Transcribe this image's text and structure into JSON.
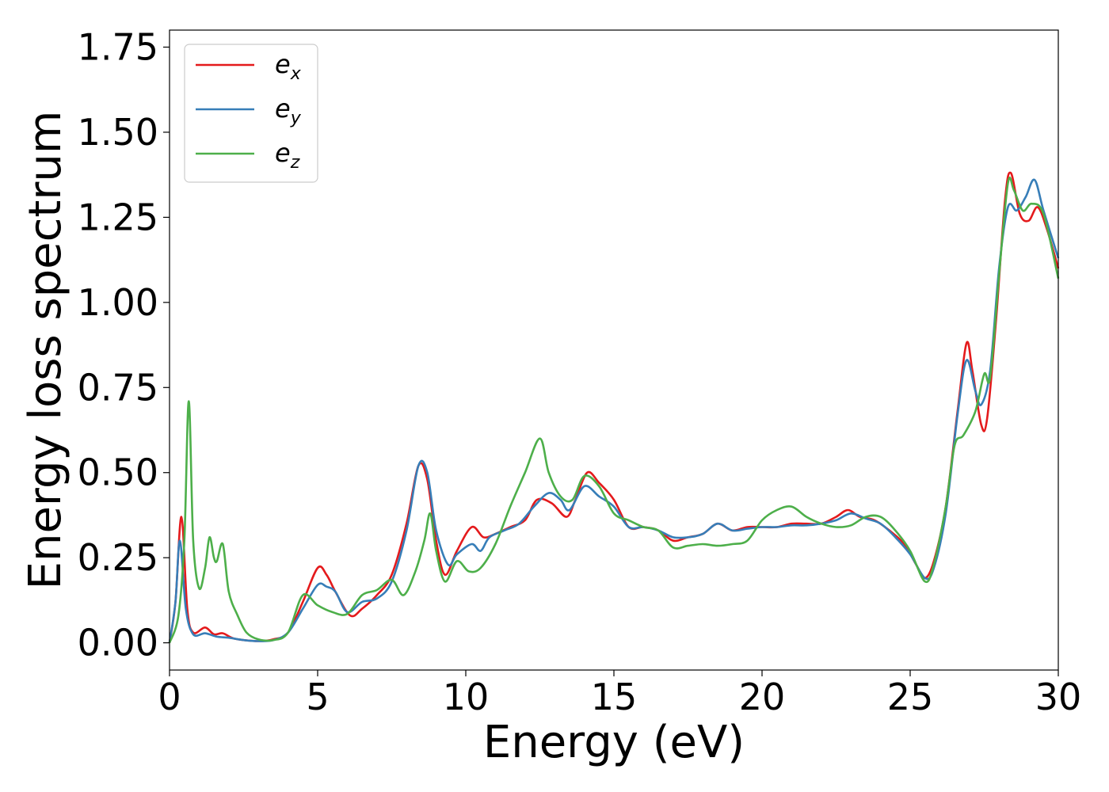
{
  "chart_data": {
    "type": "line",
    "xlabel": "Energy (eV)",
    "ylabel": "Energy loss spectrum",
    "xlim": [
      0,
      30
    ],
    "ylim": [
      -0.08,
      1.8
    ],
    "x_ticks": [
      0,
      5,
      10,
      15,
      20,
      25,
      30
    ],
    "x_tick_labels": [
      "0",
      "5",
      "10",
      "15",
      "20",
      "25",
      "30"
    ],
    "y_ticks": [
      0.0,
      0.25,
      0.5,
      0.75,
      1.0,
      1.25,
      1.5,
      1.75
    ],
    "y_tick_labels": [
      "0.00",
      "0.25",
      "0.50",
      "0.75",
      "1.00",
      "1.25",
      "1.50",
      "1.75"
    ],
    "grid": false,
    "legend_position": "top-left",
    "series": [
      {
        "name": "e_x",
        "label_base": "e",
        "label_sub": "x",
        "color": "#e41a1c",
        "points": [
          [
            0,
            0.0
          ],
          [
            0.2,
            0.12
          ],
          [
            0.4,
            0.37
          ],
          [
            0.6,
            0.1
          ],
          [
            0.8,
            0.03
          ],
          [
            1.2,
            0.045
          ],
          [
            1.5,
            0.025
          ],
          [
            1.8,
            0.028
          ],
          [
            2.2,
            0.012
          ],
          [
            3,
            0.005
          ],
          [
            3.5,
            0.01
          ],
          [
            4,
            0.03
          ],
          [
            4.5,
            0.12
          ],
          [
            5,
            0.22
          ],
          [
            5.3,
            0.2
          ],
          [
            5.6,
            0.15
          ],
          [
            6.1,
            0.08
          ],
          [
            6.5,
            0.1
          ],
          [
            7,
            0.14
          ],
          [
            7.5,
            0.2
          ],
          [
            8,
            0.35
          ],
          [
            8.4,
            0.52
          ],
          [
            8.7,
            0.48
          ],
          [
            9,
            0.3
          ],
          [
            9.3,
            0.2
          ],
          [
            9.7,
            0.27
          ],
          [
            10.2,
            0.34
          ],
          [
            10.6,
            0.31
          ],
          [
            11,
            0.32
          ],
          [
            11.5,
            0.34
          ],
          [
            12,
            0.36
          ],
          [
            12.4,
            0.42
          ],
          [
            12.9,
            0.41
          ],
          [
            13.4,
            0.37
          ],
          [
            13.7,
            0.42
          ],
          [
            14.1,
            0.5
          ],
          [
            14.5,
            0.47
          ],
          [
            15,
            0.42
          ],
          [
            15.5,
            0.34
          ],
          [
            16,
            0.34
          ],
          [
            16.5,
            0.33
          ],
          [
            17,
            0.3
          ],
          [
            17.5,
            0.31
          ],
          [
            18,
            0.32
          ],
          [
            18.5,
            0.35
          ],
          [
            19,
            0.33
          ],
          [
            19.5,
            0.34
          ],
          [
            20,
            0.34
          ],
          [
            20.5,
            0.34
          ],
          [
            21,
            0.35
          ],
          [
            21.5,
            0.35
          ],
          [
            22,
            0.35
          ],
          [
            22.5,
            0.37
          ],
          [
            22.9,
            0.39
          ],
          [
            23.3,
            0.37
          ],
          [
            23.8,
            0.36
          ],
          [
            24.3,
            0.33
          ],
          [
            24.8,
            0.29
          ],
          [
            25.2,
            0.23
          ],
          [
            25.5,
            0.19
          ],
          [
            25.8,
            0.24
          ],
          [
            26.2,
            0.4
          ],
          [
            26.6,
            0.68
          ],
          [
            26.9,
            0.88
          ],
          [
            27.1,
            0.8
          ],
          [
            27.4,
            0.64
          ],
          [
            27.6,
            0.66
          ],
          [
            27.9,
            0.95
          ],
          [
            28.2,
            1.3
          ],
          [
            28.4,
            1.38
          ],
          [
            28.7,
            1.26
          ],
          [
            29,
            1.24
          ],
          [
            29.3,
            1.28
          ],
          [
            29.6,
            1.22
          ],
          [
            30,
            1.1
          ]
        ]
      },
      {
        "name": "e_y",
        "label_base": "e",
        "label_sub": "y",
        "color": "#377eb8",
        "points": [
          [
            0,
            0.0
          ],
          [
            0.2,
            0.12
          ],
          [
            0.35,
            0.3
          ],
          [
            0.55,
            0.1
          ],
          [
            0.8,
            0.025
          ],
          [
            1.2,
            0.028
          ],
          [
            1.6,
            0.018
          ],
          [
            2,
            0.015
          ],
          [
            2.5,
            0.008
          ],
          [
            3,
            0.005
          ],
          [
            3.5,
            0.008
          ],
          [
            4,
            0.03
          ],
          [
            4.5,
            0.1
          ],
          [
            5,
            0.17
          ],
          [
            5.3,
            0.165
          ],
          [
            5.6,
            0.15
          ],
          [
            6,
            0.09
          ],
          [
            6.5,
            0.12
          ],
          [
            7,
            0.13
          ],
          [
            7.5,
            0.18
          ],
          [
            8,
            0.33
          ],
          [
            8.4,
            0.52
          ],
          [
            8.7,
            0.5
          ],
          [
            9,
            0.33
          ],
          [
            9.4,
            0.23
          ],
          [
            9.7,
            0.26
          ],
          [
            10.2,
            0.29
          ],
          [
            10.5,
            0.27
          ],
          [
            10.8,
            0.31
          ],
          [
            11.3,
            0.33
          ],
          [
            11.8,
            0.35
          ],
          [
            12.3,
            0.4
          ],
          [
            12.8,
            0.44
          ],
          [
            13.2,
            0.42
          ],
          [
            13.5,
            0.39
          ],
          [
            14,
            0.46
          ],
          [
            14.5,
            0.43
          ],
          [
            15,
            0.4
          ],
          [
            15.5,
            0.34
          ],
          [
            16,
            0.34
          ],
          [
            16.5,
            0.33
          ],
          [
            17,
            0.31
          ],
          [
            17.5,
            0.31
          ],
          [
            18,
            0.32
          ],
          [
            18.5,
            0.35
          ],
          [
            19,
            0.33
          ],
          [
            19.5,
            0.335
          ],
          [
            20,
            0.34
          ],
          [
            20.5,
            0.34
          ],
          [
            21,
            0.345
          ],
          [
            21.5,
            0.345
          ],
          [
            22,
            0.35
          ],
          [
            22.5,
            0.36
          ],
          [
            23,
            0.38
          ],
          [
            23.5,
            0.365
          ],
          [
            24,
            0.35
          ],
          [
            24.5,
            0.31
          ],
          [
            25,
            0.26
          ],
          [
            25.5,
            0.19
          ],
          [
            25.8,
            0.22
          ],
          [
            26.2,
            0.38
          ],
          [
            26.6,
            0.67
          ],
          [
            26.9,
            0.83
          ],
          [
            27.2,
            0.74
          ],
          [
            27.4,
            0.7
          ],
          [
            27.7,
            0.8
          ],
          [
            28,
            1.1
          ],
          [
            28.3,
            1.28
          ],
          [
            28.6,
            1.27
          ],
          [
            28.9,
            1.31
          ],
          [
            29.2,
            1.36
          ],
          [
            29.5,
            1.27
          ],
          [
            30,
            1.13
          ]
        ]
      },
      {
        "name": "e_z",
        "label_base": "e",
        "label_sub": "z",
        "color": "#4daf4a",
        "points": [
          [
            0,
            0.0
          ],
          [
            0.3,
            0.08
          ],
          [
            0.5,
            0.3
          ],
          [
            0.65,
            0.71
          ],
          [
            0.8,
            0.3
          ],
          [
            1,
            0.16
          ],
          [
            1.2,
            0.22
          ],
          [
            1.35,
            0.31
          ],
          [
            1.5,
            0.25
          ],
          [
            1.6,
            0.24
          ],
          [
            1.8,
            0.29
          ],
          [
            2,
            0.15
          ],
          [
            2.3,
            0.08
          ],
          [
            2.6,
            0.03
          ],
          [
            3,
            0.01
          ],
          [
            3.5,
            0.008
          ],
          [
            4,
            0.03
          ],
          [
            4.5,
            0.14
          ],
          [
            5,
            0.11
          ],
          [
            5.5,
            0.09
          ],
          [
            6,
            0.085
          ],
          [
            6.5,
            0.14
          ],
          [
            7,
            0.155
          ],
          [
            7.5,
            0.185
          ],
          [
            7.9,
            0.14
          ],
          [
            8.3,
            0.21
          ],
          [
            8.6,
            0.3
          ],
          [
            8.8,
            0.38
          ],
          [
            9,
            0.27
          ],
          [
            9.3,
            0.18
          ],
          [
            9.7,
            0.24
          ],
          [
            10.1,
            0.21
          ],
          [
            10.5,
            0.22
          ],
          [
            11,
            0.29
          ],
          [
            11.5,
            0.4
          ],
          [
            12,
            0.5
          ],
          [
            12.5,
            0.6
          ],
          [
            12.8,
            0.5
          ],
          [
            13.2,
            0.43
          ],
          [
            13.6,
            0.42
          ],
          [
            14,
            0.49
          ],
          [
            14.5,
            0.46
          ],
          [
            15,
            0.38
          ],
          [
            15.5,
            0.36
          ],
          [
            16,
            0.34
          ],
          [
            16.5,
            0.33
          ],
          [
            17,
            0.28
          ],
          [
            17.5,
            0.285
          ],
          [
            18,
            0.29
          ],
          [
            18.5,
            0.285
          ],
          [
            19,
            0.29
          ],
          [
            19.5,
            0.3
          ],
          [
            20,
            0.36
          ],
          [
            20.5,
            0.39
          ],
          [
            21,
            0.4
          ],
          [
            21.5,
            0.37
          ],
          [
            22,
            0.35
          ],
          [
            22.5,
            0.34
          ],
          [
            23,
            0.345
          ],
          [
            23.5,
            0.37
          ],
          [
            24,
            0.37
          ],
          [
            24.5,
            0.33
          ],
          [
            25,
            0.27
          ],
          [
            25.5,
            0.18
          ],
          [
            25.8,
            0.23
          ],
          [
            26.2,
            0.4
          ],
          [
            26.5,
            0.58
          ],
          [
            26.8,
            0.61
          ],
          [
            27.2,
            0.68
          ],
          [
            27.5,
            0.79
          ],
          [
            27.7,
            0.78
          ],
          [
            28,
            1.08
          ],
          [
            28.3,
            1.35
          ],
          [
            28.5,
            1.33
          ],
          [
            28.8,
            1.27
          ],
          [
            29.1,
            1.29
          ],
          [
            29.5,
            1.26
          ],
          [
            30,
            1.07
          ]
        ]
      }
    ]
  }
}
